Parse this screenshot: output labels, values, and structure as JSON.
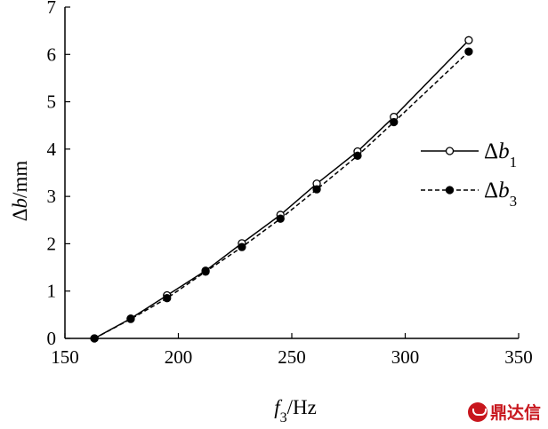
{
  "chart_data": {
    "type": "line",
    "xlabel": {
      "base": "f",
      "sub": "3",
      "unit": "/Hz"
    },
    "ylabel": {
      "delta": "Δ",
      "var": "b",
      "unit": "/mm"
    },
    "xlim": [
      150,
      350
    ],
    "ylim": [
      0,
      7
    ],
    "x_ticks": [
      "150",
      "200",
      "250",
      "300",
      "350"
    ],
    "y_ticks": [
      "0",
      "1",
      "2",
      "3",
      "4",
      "5",
      "6",
      "7"
    ],
    "grid": false,
    "legend_position": "right",
    "series": [
      {
        "name": "Δb1",
        "legend": {
          "delta": "Δ",
          "var": "b",
          "sub": "1"
        },
        "style": "solid",
        "marker": "open-circle",
        "x": [
          163,
          179,
          195,
          212,
          228,
          245,
          261,
          279,
          295,
          328
        ],
        "y": [
          0.0,
          0.42,
          0.91,
          1.43,
          2.01,
          2.61,
          3.27,
          3.95,
          4.68,
          6.3
        ]
      },
      {
        "name": "Δb3",
        "legend": {
          "delta": "Δ",
          "var": "b",
          "sub": "3"
        },
        "style": "dashed",
        "marker": "filled-circle",
        "x": [
          163,
          179,
          195,
          212,
          228,
          245,
          261,
          279,
          295,
          328
        ],
        "y": [
          0.0,
          0.41,
          0.85,
          1.41,
          1.93,
          2.53,
          3.15,
          3.86,
          4.57,
          6.06
        ]
      }
    ]
  },
  "logo_text": "鼎达信",
  "colors": {
    "line": "#000000",
    "logo": "#c8161d"
  }
}
